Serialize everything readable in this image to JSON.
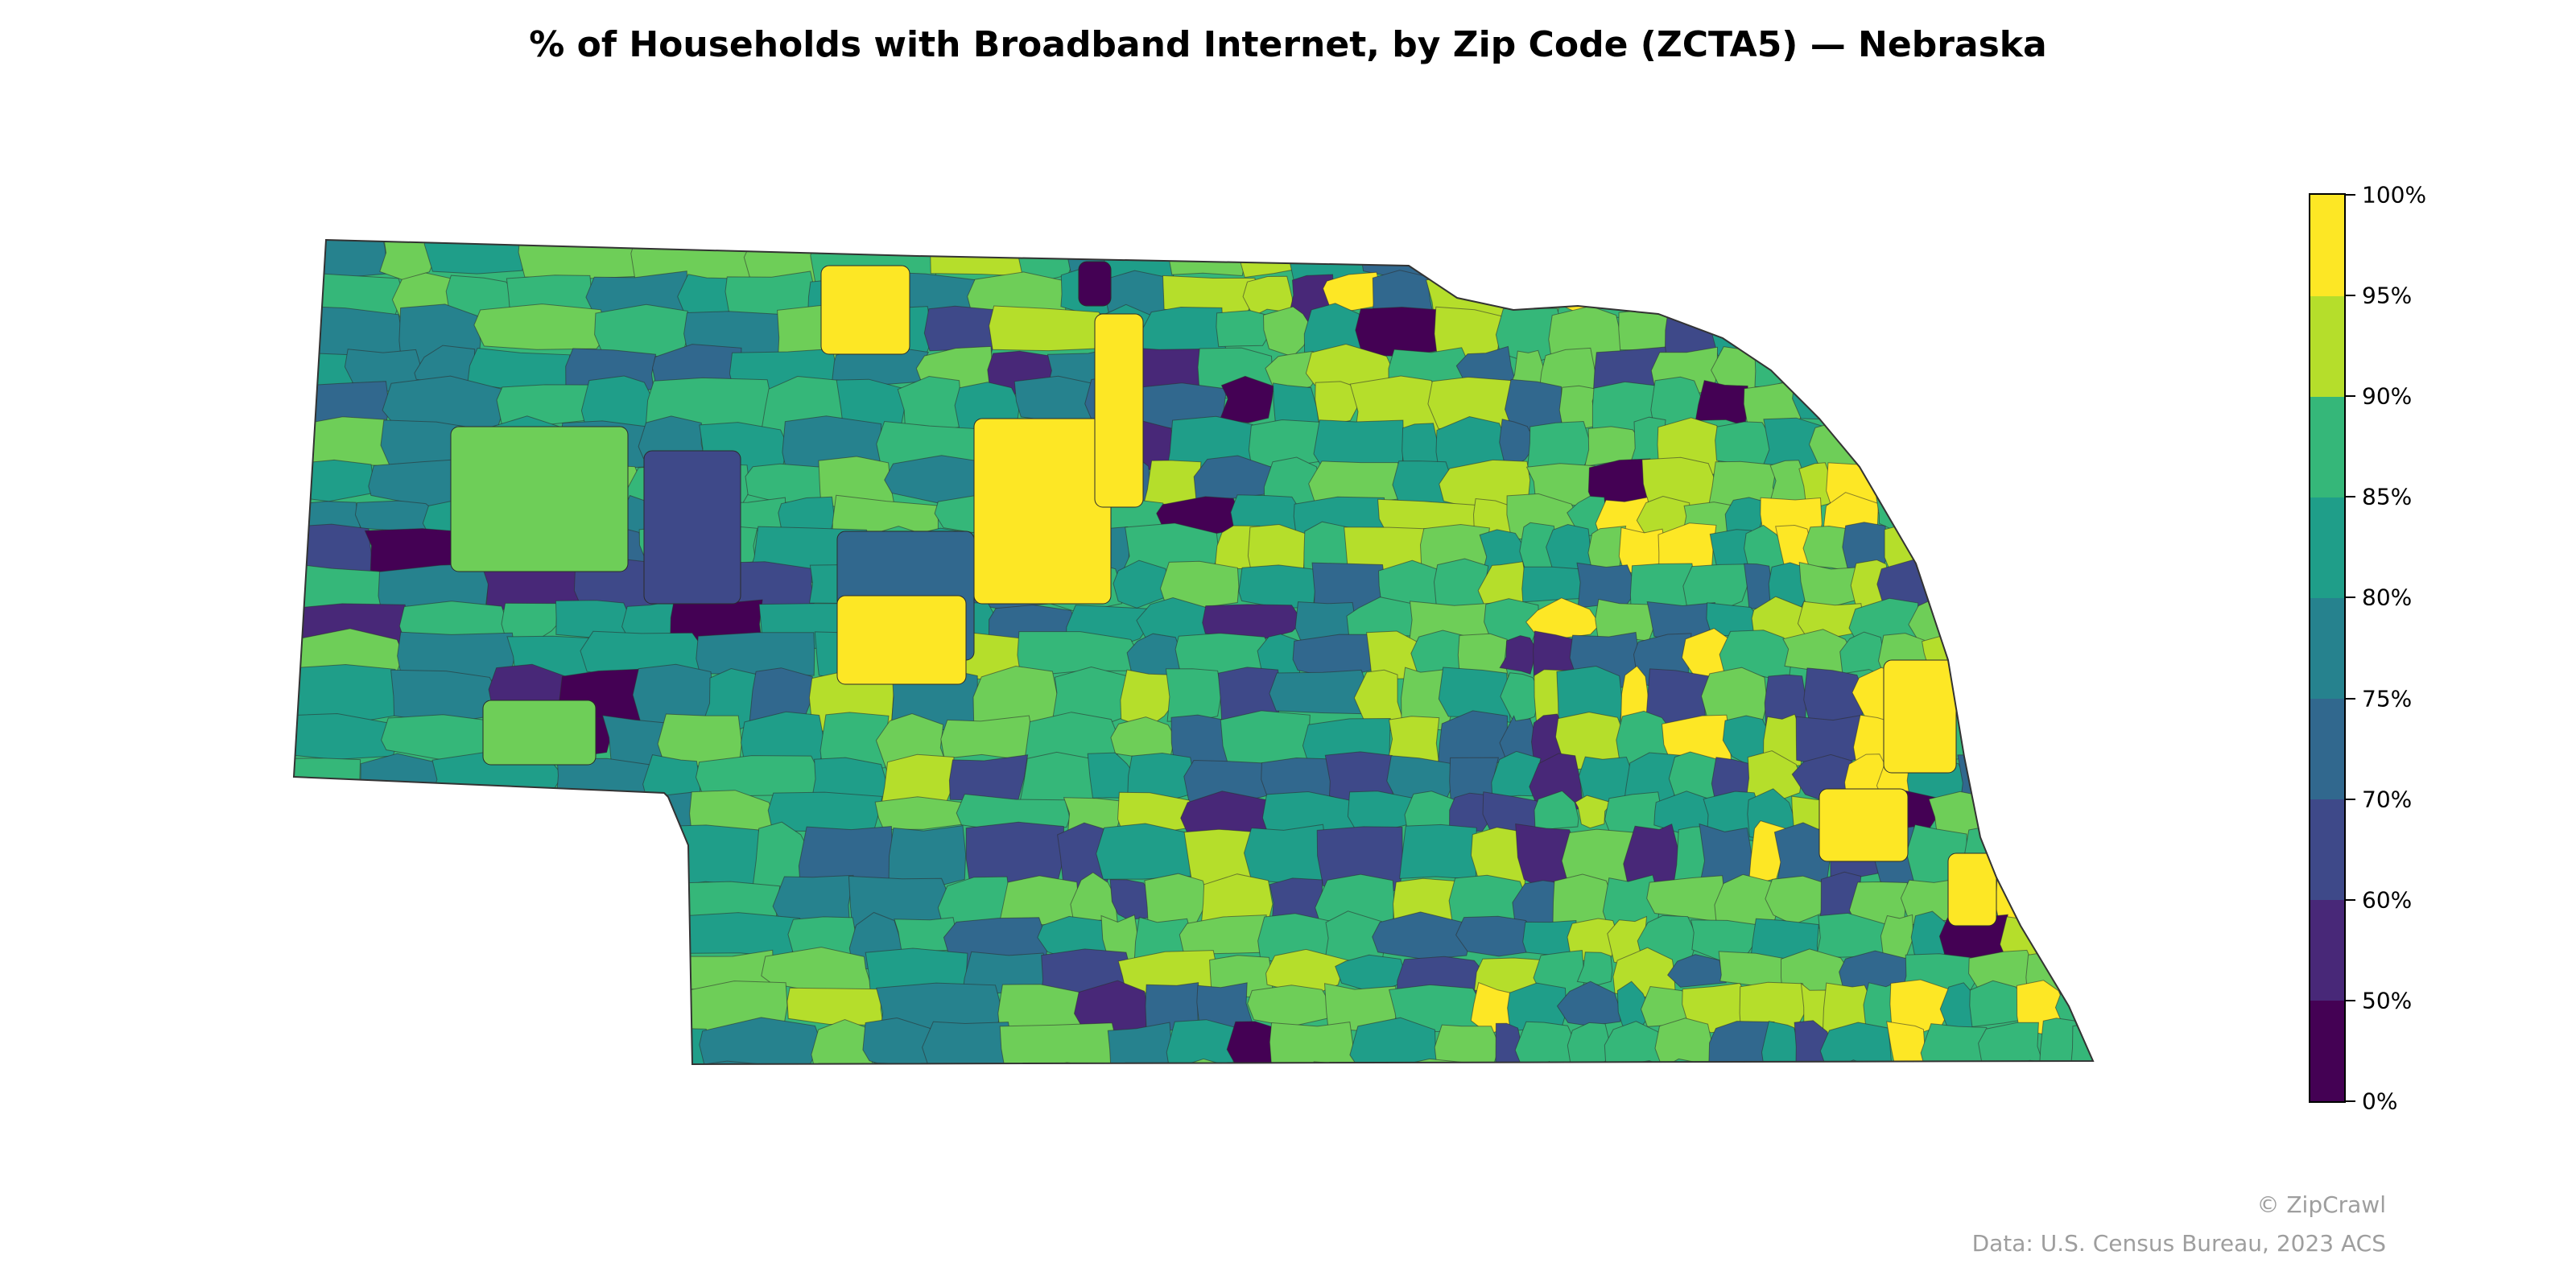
{
  "title": "% of Households with Broadband Internet, by Zip Code (ZCTA5) — Nebraska",
  "legend": {
    "ticks": [
      "0%",
      "50%",
      "60%",
      "70%",
      "75%",
      "80%",
      "85%",
      "90%",
      "95%",
      "100%"
    ],
    "bins": [
      {
        "range": "0%–50%",
        "color": "#440154"
      },
      {
        "range": "50%–60%",
        "color": "#482878"
      },
      {
        "range": "60%–70%",
        "color": "#3e4989"
      },
      {
        "range": "70%–75%",
        "color": "#31688e"
      },
      {
        "range": "75%–80%",
        "color": "#26828e"
      },
      {
        "range": "80%–85%",
        "color": "#1f9e89"
      },
      {
        "range": "85%–90%",
        "color": "#35b779"
      },
      {
        "range": "90%–95%",
        "color": "#6ece58"
      },
      {
        "range": "95%–100%",
        "color": "#b5de2b"
      },
      {
        "range": "100%",
        "color": "#fde725"
      }
    ]
  },
  "nodata_color": "#d9d9d9",
  "credits": {
    "brand": "© ZipCrawl",
    "source": "Data: U.S. Census Bureau, 2023 ACS"
  }
}
